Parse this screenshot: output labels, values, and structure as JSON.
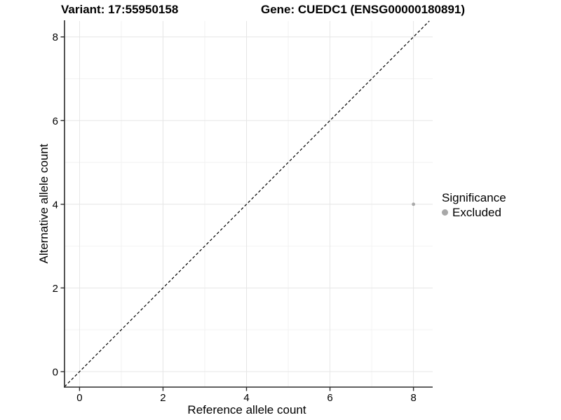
{
  "chart_data": {
    "type": "scatter",
    "title_left": "Variant: 17:55950158",
    "title_right": "Gene: CUEDC1 (ENSG00000180891)",
    "xlabel": "Reference allele count",
    "ylabel": "Alternative allele count",
    "xlim": [
      -0.36,
      8.46
    ],
    "ylim": [
      -0.37,
      8.38
    ],
    "x_ticks": [
      0,
      2,
      4,
      6,
      8
    ],
    "y_ticks": [
      0,
      2,
      4,
      6,
      8
    ],
    "grid": {
      "major": true,
      "minor": true,
      "major_color": "#e6e6e6",
      "minor_color": "#f2f2f2"
    },
    "identity_line": {
      "slope": 1,
      "intercept": 0,
      "style": "dashed",
      "color": "#000000"
    },
    "series": [
      {
        "name": "Excluded",
        "color": "#a8a8a8",
        "point_radius": 2.4,
        "points": [
          [
            8,
            4
          ]
        ]
      }
    ],
    "legend": {
      "title": "Significance",
      "position": "right",
      "items": [
        {
          "label": "Excluded",
          "color": "#a8a8a8"
        }
      ]
    },
    "axis_color": "#2b2b2b",
    "text_color": "#000000"
  }
}
